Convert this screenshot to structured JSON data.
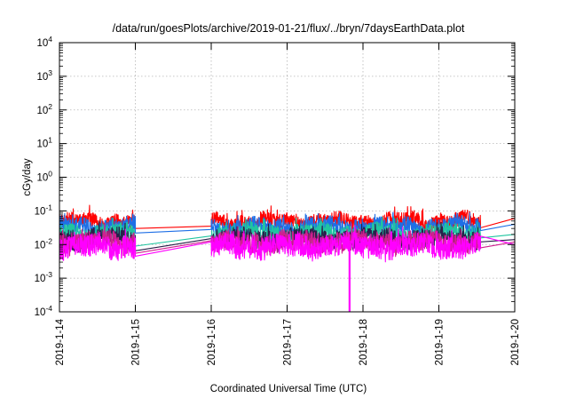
{
  "chart_data": {
    "type": "line",
    "title": "/data/run/goesPlots/archive/2019-01-21/flux/../bryn/7daysEarthData.plot",
    "xlabel": "Coordinated Universal Time (UTC)",
    "ylabel": "cGy/day",
    "yscale": "log",
    "ylim": [
      0.0001,
      10000
    ],
    "xlim": [
      "2019-01-14",
      "2019-01-20"
    ],
    "x_ticks": [
      "2019-1-14",
      "2019-1-15",
      "2019-1-16",
      "2019-1-17",
      "2019-1-18",
      "2019-1-19",
      "2019-1-20"
    ],
    "y_ticks": [
      {
        "base": "10",
        "exp": "-4"
      },
      {
        "base": "10",
        "exp": "-3"
      },
      {
        "base": "10",
        "exp": "-2"
      },
      {
        "base": "10",
        "exp": "-1"
      },
      {
        "base": "10",
        "exp": "0"
      },
      {
        "base": "10",
        "exp": "1"
      },
      {
        "base": "10",
        "exp": "2"
      },
      {
        "base": "10",
        "exp": "3"
      },
      {
        "base": "10",
        "exp": "4"
      }
    ],
    "grid": true,
    "data_gaps": [
      [
        "2019-01-15",
        "2019-01-16"
      ]
    ],
    "series": [
      {
        "color": "#ff0000",
        "level": 0.05,
        "spread": 0.22,
        "gap_start": 0.03,
        "gap_end": 0.035,
        "end_value": 0.06
      },
      {
        "color": "#1e6fe6",
        "level": 0.034,
        "spread": 0.25,
        "gap_start": 0.022,
        "gap_end": 0.028,
        "end_value": 0.04
      },
      {
        "color": "#20c5a0",
        "level": 0.022,
        "spread": 0.25,
        "gap_start": 0.009,
        "gap_end": 0.018,
        "end_value": 0.02
      },
      {
        "color": "#2a1f4a",
        "level": 0.015,
        "spread": 0.28,
        "gap_start": 0.0065,
        "gap_end": 0.015,
        "end_value": 0.014
      },
      {
        "color": "#d0208f",
        "level": 0.012,
        "spread": 0.3,
        "gap_start": 0.0055,
        "gap_end": 0.013,
        "end_value": 0.012
      },
      {
        "color": "#ff00ff",
        "level": 0.009,
        "spread": 0.34,
        "gap_start": 0.0045,
        "gap_end": 0.012,
        "end_value": 0.01
      }
    ],
    "dropouts": [
      {
        "series": 5,
        "x": "2019-01-17T19:45",
        "value": 0.0001
      }
    ]
  }
}
